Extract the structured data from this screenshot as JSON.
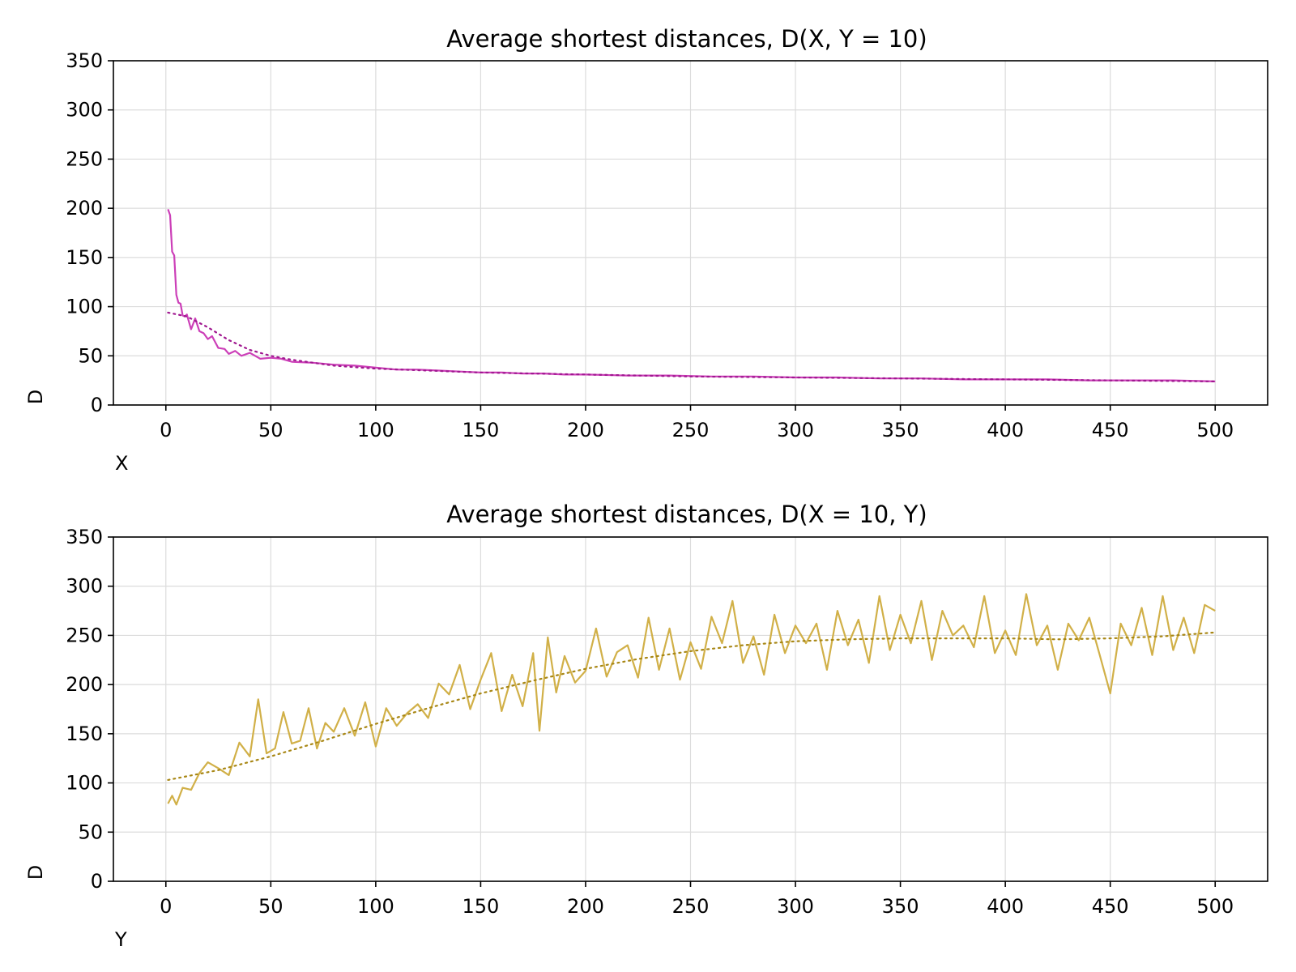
{
  "chart_data": [
    {
      "type": "line",
      "title": "Average shortest distances, D(X, Y = 10)",
      "xlabel": "X",
      "ylabel": "D",
      "xlim": [
        -25,
        525
      ],
      "ylim": [
        0,
        350
      ],
      "xticks": [
        0,
        50,
        100,
        150,
        200,
        250,
        300,
        350,
        400,
        450,
        500
      ],
      "yticks": [
        0,
        50,
        100,
        150,
        200,
        250,
        300,
        350
      ],
      "grid": true,
      "series": [
        {
          "style": "solid",
          "color": "#cc3fb8",
          "x": [
            1,
            2,
            3,
            4,
            5,
            6,
            7,
            8,
            9,
            10,
            12,
            14,
            16,
            18,
            20,
            22,
            25,
            28,
            30,
            33,
            36,
            40,
            45,
            50,
            55,
            60,
            70,
            80,
            90,
            100,
            110,
            120,
            130,
            140,
            150,
            160,
            170,
            180,
            190,
            200,
            220,
            240,
            260,
            280,
            300,
            320,
            340,
            360,
            380,
            400,
            420,
            440,
            460,
            480,
            500
          ],
          "y": [
            199,
            193,
            156,
            152,
            112,
            104,
            103,
            91,
            90,
            92,
            77,
            88,
            75,
            73,
            67,
            70,
            58,
            57,
            52,
            55,
            50,
            53,
            47,
            48,
            47,
            44,
            43,
            41,
            40,
            38,
            36,
            36,
            35,
            34,
            33,
            33,
            32,
            32,
            31,
            31,
            30,
            30,
            29,
            29,
            28,
            28,
            27,
            27,
            26,
            26,
            26,
            25,
            25,
            25,
            24
          ]
        },
        {
          "style": "dotted",
          "color": "#a01890",
          "x": [
            1,
            10,
            20,
            30,
            40,
            50,
            60,
            80,
            100,
            150,
            200,
            250,
            300,
            350,
            400,
            450,
            500
          ],
          "y": [
            94,
            90,
            79,
            66,
            56,
            50,
            46,
            40,
            37,
            33,
            31,
            29,
            28,
            27,
            26,
            25,
            24
          ]
        }
      ]
    },
    {
      "type": "line",
      "title": "Average shortest distances, D(X = 10, Y)",
      "xlabel": "Y",
      "ylabel": "D",
      "xlim": [
        -25,
        525
      ],
      "ylim": [
        0,
        350
      ],
      "xticks": [
        0,
        50,
        100,
        150,
        200,
        250,
        300,
        350,
        400,
        450,
        500
      ],
      "yticks": [
        0,
        50,
        100,
        150,
        200,
        250,
        300,
        350
      ],
      "grid": true,
      "series": [
        {
          "style": "solid",
          "color": "#d1b048",
          "x": [
            1,
            3,
            5,
            8,
            12,
            16,
            20,
            25,
            30,
            35,
            40,
            44,
            48,
            52,
            56,
            60,
            64,
            68,
            72,
            76,
            80,
            85,
            90,
            95,
            100,
            105,
            110,
            115,
            120,
            125,
            130,
            135,
            140,
            145,
            150,
            155,
            160,
            165,
            170,
            175,
            178,
            182,
            186,
            190,
            195,
            200,
            205,
            210,
            215,
            220,
            225,
            230,
            235,
            240,
            245,
            250,
            255,
            260,
            265,
            270,
            275,
            280,
            285,
            290,
            295,
            300,
            305,
            310,
            315,
            320,
            325,
            330,
            335,
            340,
            345,
            350,
            355,
            360,
            365,
            370,
            375,
            380,
            385,
            390,
            395,
            400,
            405,
            410,
            415,
            420,
            425,
            430,
            435,
            440,
            445,
            450,
            455,
            460,
            465,
            470,
            475,
            480,
            485,
            490,
            495,
            500
          ],
          "y": [
            79,
            87,
            78,
            95,
            93,
            110,
            121,
            115,
            108,
            141,
            127,
            185,
            130,
            135,
            172,
            140,
            143,
            176,
            135,
            161,
            152,
            176,
            148,
            182,
            137,
            176,
            158,
            171,
            180,
            166,
            201,
            190,
            220,
            175,
            205,
            232,
            173,
            210,
            178,
            232,
            153,
            248,
            192,
            229,
            202,
            214,
            257,
            208,
            233,
            240,
            207,
            268,
            215,
            257,
            205,
            243,
            216,
            269,
            242,
            285,
            222,
            249,
            210,
            271,
            232,
            260,
            242,
            262,
            215,
            275,
            240,
            266,
            222,
            290,
            235,
            271,
            242,
            285,
            225,
            275,
            250,
            260,
            238,
            290,
            232,
            255,
            230,
            292,
            240,
            260,
            215,
            262,
            245,
            268,
            230,
            191,
            262,
            240,
            278,
            230,
            290,
            235,
            268,
            232,
            281,
            275
          ]
        },
        {
          "style": "dotted",
          "color": "#a88715",
          "x": [
            1,
            25,
            50,
            75,
            100,
            125,
            150,
            175,
            200,
            225,
            250,
            275,
            300,
            325,
            350,
            375,
            400,
            425,
            450,
            475,
            500
          ],
          "y": [
            103,
            113,
            127,
            143,
            160,
            176,
            191,
            204,
            216,
            226,
            234,
            240,
            244,
            246,
            247,
            247,
            247,
            246,
            247,
            249,
            253
          ]
        }
      ]
    }
  ]
}
